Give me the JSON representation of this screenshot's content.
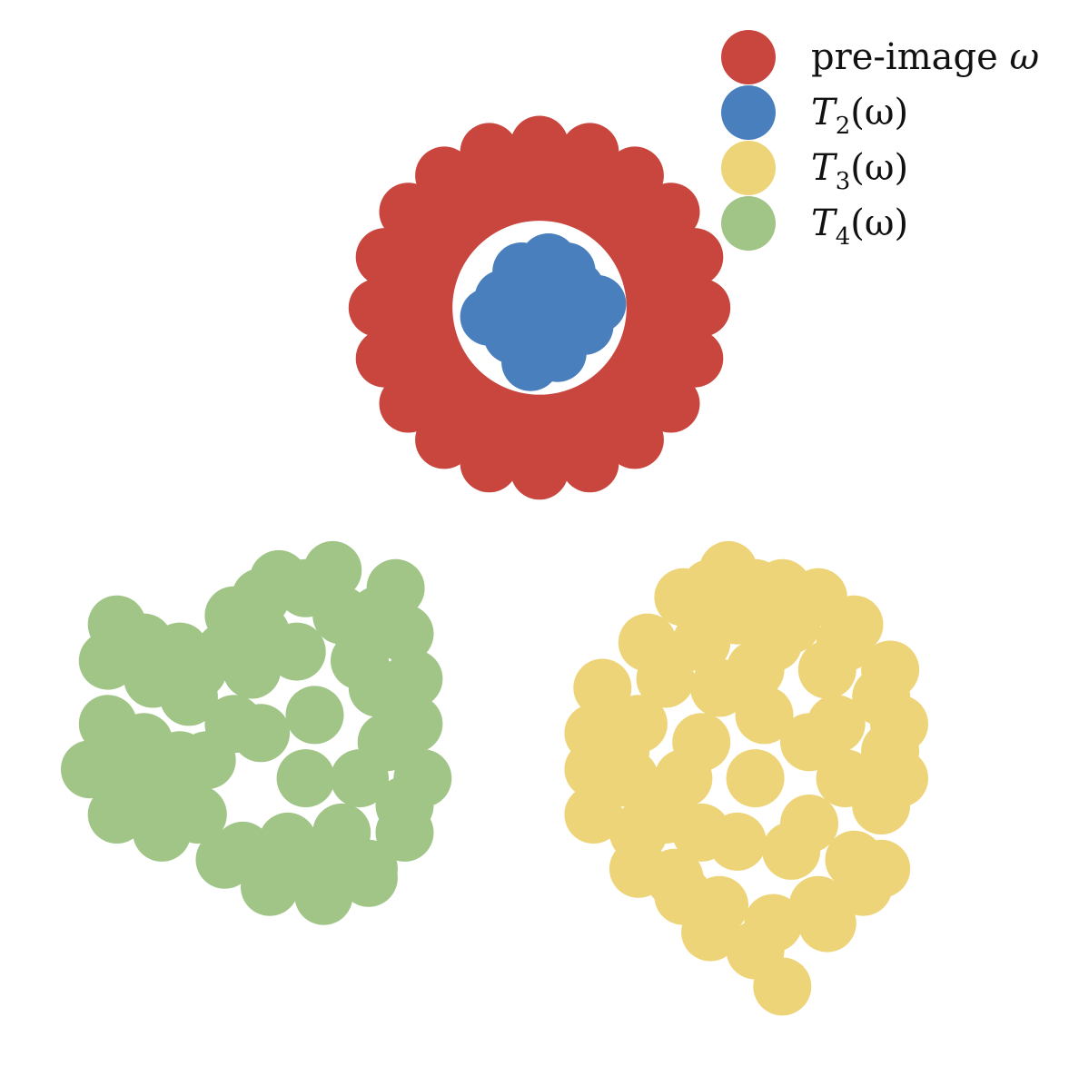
{
  "chart_data": {
    "type": "scatter",
    "title": "",
    "xlabel": "",
    "ylabel": "",
    "axes_visible": false,
    "grid": false,
    "legend_placement": "top-right",
    "xlim": [
      -3,
      3
    ],
    "ylim": [
      -3.3,
      2.7
    ],
    "series": [
      {
        "name": "pre-image ω",
        "legend_label": {
          "text": "pre-image ",
          "symbol": "ω"
        },
        "color": "#c9463f",
        "shape": "annulus",
        "center": [
          0,
          1.0
        ],
        "inner_radius": 0.5,
        "outer_radius": 0.9,
        "points": [
          [
            0.9,
            1.0
          ],
          [
            0.86,
            1.28
          ],
          [
            0.73,
            1.53
          ],
          [
            0.53,
            1.73
          ],
          [
            0.28,
            1.86
          ],
          [
            0.0,
            1.9
          ],
          [
            -0.28,
            1.86
          ],
          [
            -0.53,
            1.73
          ],
          [
            -0.73,
            1.53
          ],
          [
            -0.86,
            1.28
          ],
          [
            -0.9,
            1.0
          ],
          [
            -0.86,
            0.72
          ],
          [
            -0.73,
            0.47
          ],
          [
            -0.53,
            0.27
          ],
          [
            -0.28,
            0.14
          ],
          [
            0.0,
            0.1
          ],
          [
            0.28,
            0.14
          ],
          [
            0.53,
            0.27
          ],
          [
            0.73,
            0.47
          ],
          [
            0.86,
            0.72
          ],
          [
            0.7,
            1.0
          ],
          [
            0.61,
            1.34
          ],
          [
            0.35,
            1.61
          ],
          [
            0.0,
            1.7
          ],
          [
            -0.35,
            1.61
          ],
          [
            -0.61,
            1.34
          ],
          [
            -0.7,
            1.0
          ],
          [
            -0.61,
            0.66
          ],
          [
            -0.35,
            0.39
          ],
          [
            0.0,
            0.3
          ],
          [
            0.35,
            0.39
          ],
          [
            0.61,
            0.66
          ],
          [
            0.66,
            1.22
          ],
          [
            0.22,
            1.66
          ],
          [
            -0.43,
            1.55
          ],
          [
            -0.66,
            0.78
          ],
          [
            -0.22,
            0.34
          ],
          [
            0.43,
            0.45
          ]
        ]
      },
      {
        "name": "T2(ω)",
        "legend_label": {
          "base": "T",
          "sub": "2",
          "arg": "(ω)"
        },
        "color": "#4a7fbd",
        "shape": "disk",
        "points": [
          [
            0.0,
            1.0
          ],
          [
            0.2,
            1.1
          ],
          [
            0.25,
            0.9
          ],
          [
            -0.2,
            1.05
          ],
          [
            -0.15,
            0.85
          ],
          [
            0.05,
            1.25
          ],
          [
            0.1,
            0.75
          ],
          [
            -0.28,
            0.95
          ],
          [
            0.32,
            1.02
          ],
          [
            -0.05,
            0.7
          ],
          [
            0.15,
            1.2
          ],
          [
            -0.1,
            1.2
          ]
        ]
      },
      {
        "name": "T3(ω)",
        "legend_label": {
          "base": "T",
          "sub": "3",
          "arg": "(ω)"
        },
        "color": "#eed478",
        "shape": "cloud",
        "points": [
          [
            1.25,
            -1.25
          ],
          [
            1.6,
            -1.0
          ],
          [
            1.4,
            -0.75
          ],
          [
            1.1,
            -0.7
          ],
          [
            0.9,
            -0.85
          ],
          [
            0.7,
            -1.05
          ],
          [
            0.55,
            -1.3
          ],
          [
            0.5,
            -1.6
          ],
          [
            0.55,
            -1.9
          ],
          [
            0.75,
            -2.15
          ],
          [
            1.0,
            -2.3
          ],
          [
            1.3,
            -2.4
          ],
          [
            1.55,
            -2.3
          ],
          [
            1.75,
            -2.05
          ],
          [
            1.9,
            -1.75
          ],
          [
            1.95,
            -1.45
          ],
          [
            1.9,
            -1.15
          ],
          [
            1.7,
            -0.85
          ],
          [
            1.2,
            -0.55
          ],
          [
            0.8,
            -0.6
          ],
          [
            0.6,
            -0.85
          ],
          [
            0.35,
            -1.1
          ],
          [
            0.3,
            -1.35
          ],
          [
            0.45,
            -1.45
          ],
          [
            0.3,
            -1.55
          ],
          [
            0.3,
            -1.8
          ],
          [
            0.55,
            -2.1
          ],
          [
            0.8,
            -2.25
          ],
          [
            0.95,
            -2.45
          ],
          [
            1.2,
            -2.55
          ],
          [
            1.35,
            -2.75
          ],
          [
            1.6,
            -2.4
          ],
          [
            1.9,
            -2.1
          ],
          [
            2.0,
            -1.6
          ],
          [
            2.0,
            -1.3
          ],
          [
            1.95,
            -1.0
          ],
          [
            1.75,
            -0.75
          ],
          [
            1.55,
            -0.6
          ],
          [
            1.35,
            -0.55
          ],
          [
            1.05,
            -0.45
          ],
          [
            0.95,
            -0.55
          ],
          [
            1.2,
            -1.0
          ],
          [
            1.5,
            -1.4
          ],
          [
            1.2,
            -1.6
          ],
          [
            0.9,
            -1.4
          ],
          [
            0.9,
            -1.9
          ],
          [
            1.4,
            -2.0
          ],
          [
            1.7,
            -1.6
          ],
          [
            1.0,
            -1.1
          ],
          [
            0.8,
            -1.6
          ],
          [
            1.1,
            -1.95
          ],
          [
            1.5,
            -1.85
          ],
          [
            1.65,
            -1.3
          ],
          [
            1.3,
            -0.85
          ],
          [
            0.7,
            -1.8
          ],
          [
            1.8,
            -2.2
          ]
        ]
      },
      {
        "name": "T4(ω)",
        "legend_label": {
          "base": "T",
          "sub": "4",
          "arg": "(ω)"
        },
        "color": "#a0c587",
        "shape": "cloud",
        "points": [
          [
            -1.25,
            -1.25
          ],
          [
            -1.0,
            -0.95
          ],
          [
            -1.1,
            -0.7
          ],
          [
            -1.3,
            -0.55
          ],
          [
            -1.55,
            -0.6
          ],
          [
            -0.8,
            -0.55
          ],
          [
            -0.75,
            -0.8
          ],
          [
            -0.9,
            -1.1
          ],
          [
            -0.7,
            -1.3
          ],
          [
            -0.65,
            -1.6
          ],
          [
            -0.75,
            -1.9
          ],
          [
            -0.95,
            -2.15
          ],
          [
            -1.2,
            -2.25
          ],
          [
            -1.5,
            -2.2
          ],
          [
            -1.75,
            -2.05
          ],
          [
            -1.9,
            -1.8
          ],
          [
            -2.1,
            -1.7
          ],
          [
            -2.3,
            -1.6
          ],
          [
            -2.5,
            -1.55
          ],
          [
            -2.4,
            -1.3
          ],
          [
            -2.2,
            -1.4
          ],
          [
            -2.0,
            -1.5
          ],
          [
            -1.85,
            -1.5
          ],
          [
            -1.7,
            -1.3
          ],
          [
            -1.6,
            -1.0
          ],
          [
            -1.75,
            -0.9
          ],
          [
            -2.0,
            -0.9
          ],
          [
            -2.2,
            -0.85
          ],
          [
            -2.35,
            -0.75
          ],
          [
            -2.4,
            -0.95
          ],
          [
            -2.15,
            -1.05
          ],
          [
            -1.95,
            -1.15
          ],
          [
            -1.55,
            -0.8
          ],
          [
            -1.35,
            -0.9
          ],
          [
            -1.3,
            -1.6
          ],
          [
            -1.0,
            -1.6
          ],
          [
            -1.1,
            -1.9
          ],
          [
            -1.4,
            -1.95
          ],
          [
            -0.85,
            -1.4
          ],
          [
            -1.55,
            -1.35
          ],
          [
            -0.9,
            -0.7
          ],
          [
            -1.15,
            -0.45
          ],
          [
            -1.45,
            -0.5
          ],
          [
            -0.95,
            -2.1
          ],
          [
            -2.1,
            -1.9
          ],
          [
            -2.35,
            -1.8
          ],
          [
            -1.65,
            -2.0
          ],
          [
            -1.25,
            -2.05
          ],
          [
            -0.75,
            -1.75
          ],
          [
            -0.7,
            -1.05
          ],
          [
            -1.7,
            -0.7
          ],
          [
            -1.9,
            -1.0
          ]
        ]
      }
    ]
  }
}
